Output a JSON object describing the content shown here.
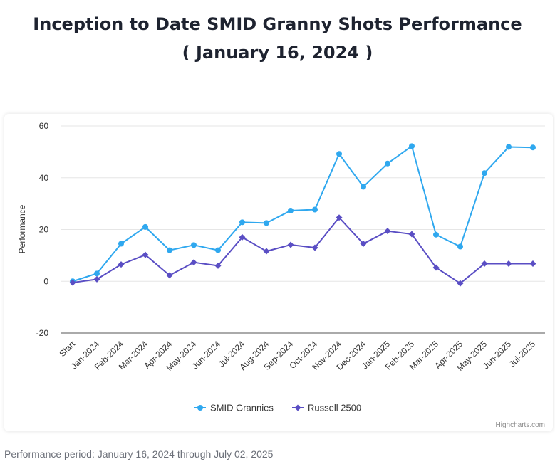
{
  "title_line1": "Inception to Date SMID Granny Shots Performance",
  "title_line2": "( January 16, 2024 )",
  "footer": "Performance period: January 16, 2024 through July 02, 2025",
  "credits": "Highcharts.com",
  "chart_data": {
    "type": "line",
    "title": "Inception to Date SMID Granny Shots Performance ( January 16, 2024 )",
    "xlabel": "",
    "ylabel": "Performance",
    "ylim": [
      -20,
      60
    ],
    "yticks": [
      60,
      40,
      20,
      0,
      -20
    ],
    "grid": true,
    "legend": "bottom-center",
    "categories": [
      "Start",
      "Jan-2024",
      "Feb-2024",
      "Mar-2024",
      "Apr-2024",
      "May-2024",
      "Jun-2024",
      "Jul-2024",
      "Aug-2024",
      "Sep-2024",
      "Oct-2024",
      "Nov-2024",
      "Dec-2024",
      "Jan-2025",
      "Feb-2025",
      "Mar-2025",
      "Apr-2025",
      "May-2025",
      "Jun-2025",
      "Jul-2025"
    ],
    "series": [
      {
        "name": "SMID Grannies",
        "color": "#2fa8ef",
        "marker": "circle",
        "values": [
          0,
          3,
          14.5,
          21,
          12,
          14,
          12,
          22.8,
          22.5,
          27.3,
          27.7,
          49.2,
          36.5,
          45.5,
          52.2,
          18,
          13.4,
          41.8,
          51.9,
          51.7
        ]
      },
      {
        "name": "Russell 2500",
        "color": "#5a4ec4",
        "marker": "diamond",
        "values": [
          -0.5,
          0.8,
          6.5,
          10.2,
          2.3,
          7.3,
          6,
          17,
          11.6,
          14.1,
          13,
          24.6,
          14.5,
          19.4,
          18.2,
          5.3,
          -0.8,
          6.8,
          6.8,
          6.8
        ]
      }
    ]
  }
}
